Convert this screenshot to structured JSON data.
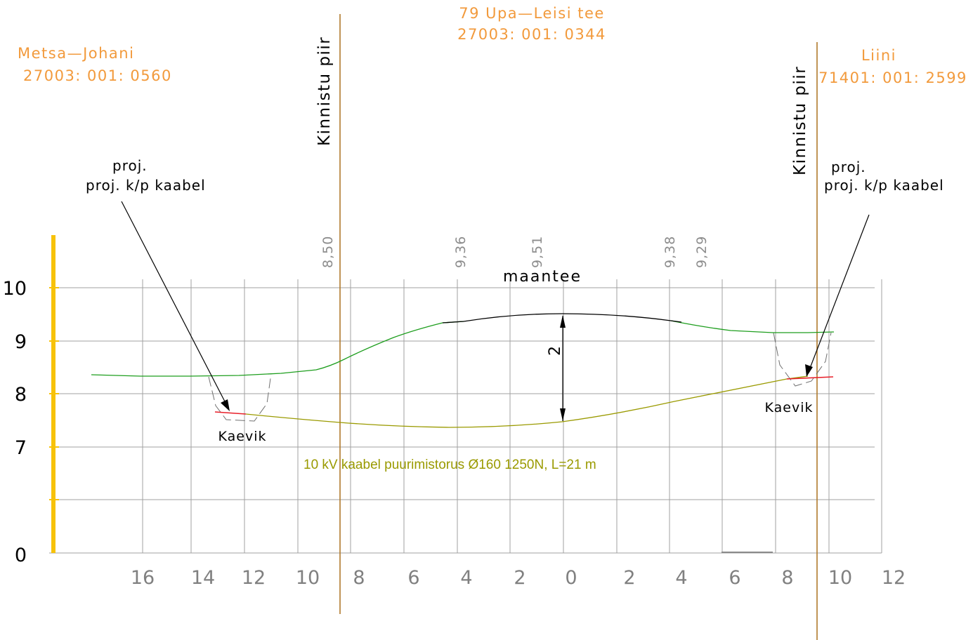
{
  "parcels": {
    "left": {
      "name": "Metsa—Johani",
      "code": "27003: 001: 0560"
    },
    "center": {
      "name": "79 Upa—Leisi tee",
      "code": "27003: 001: 0344"
    },
    "right": {
      "name": "Liini",
      "code": "71401: 001: 2599"
    }
  },
  "boundary_label": "Kinnistu piir",
  "notes": {
    "left": {
      "line1": "proj.",
      "line2": "proj. k/p kaabel"
    },
    "right": {
      "line1": "proj.",
      "line2": "proj. k/p kaabel"
    }
  },
  "elevation_labels": [
    "8,50",
    "9,36",
    "9,51",
    "9,38",
    "9,29"
  ],
  "road_label": "maantee",
  "trench_label": "Kaevik",
  "cable_label": "10 kV kaabel puurimistorus Ø160 1250N, L=21 m",
  "dimension_label": "2",
  "axes": {
    "y_ticks": [
      "10",
      "9",
      "8",
      "7",
      "0"
    ],
    "x_ticks": [
      "16",
      "14",
      "12",
      "10",
      "8",
      "6",
      "4",
      "2",
      "0",
      "2",
      "4",
      "6",
      "8",
      "10",
      "12"
    ]
  },
  "colors": {
    "ground": "#1e9e1e",
    "road_surface": "#000000",
    "cable": "#9a9a00",
    "cable_ends": "#e8202a",
    "boundary": "#b07a2c",
    "grid": "#a0a0a0",
    "scale_bar": "#f7c20a",
    "parcel_text": "#f29a3c"
  }
}
